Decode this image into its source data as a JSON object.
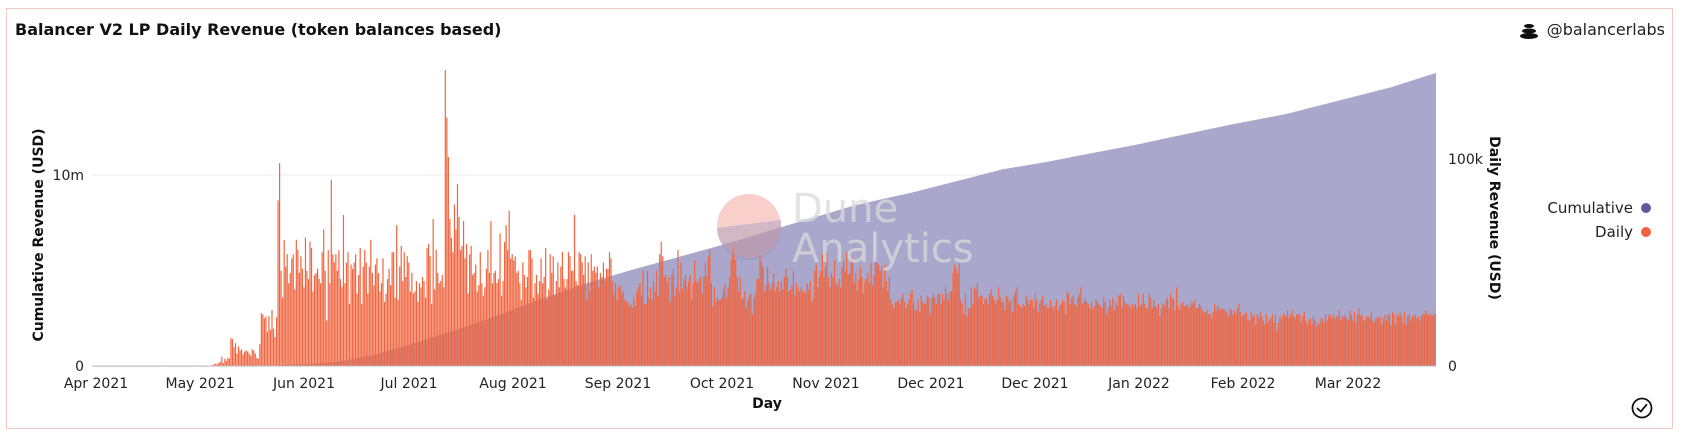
{
  "header": {
    "title": "Balancer V2 LP Daily Revenue (token balances based)",
    "author": "@balancerlabs"
  },
  "watermark": {
    "line1": "Dune",
    "line2": "Analytics"
  },
  "legend": {
    "placement": "right",
    "items": [
      {
        "label": "Cumulative",
        "color": "#5b5b9e"
      },
      {
        "label": "Daily",
        "color": "#f0653f"
      }
    ]
  },
  "colors": {
    "daily_bar": "#f0653f",
    "cumulative_area": "#a9a8cc"
  },
  "chart_data": {
    "type": "bar",
    "xlabel": "Day",
    "ylabel_left": "Cumulative Revenue (USD)",
    "ylabel_right": "Daily Revenue (USD)",
    "x_ticks": [
      "Apr 2021",
      "May 2021",
      "Jun 2021",
      "Jul 2021",
      "Aug 2021",
      "Sep 2021",
      "Oct 2021",
      "Nov 2021",
      "Dec 2021",
      "Dec 2021",
      "Jan 2022",
      "Feb 2022",
      "Mar 2022"
    ],
    "y_ticks_left": [
      {
        "value": 0,
        "label": "0"
      },
      {
        "value": 10000000,
        "label": "10m"
      }
    ],
    "y_ticks_right": [
      {
        "value": 0,
        "label": "0"
      },
      {
        "value": 100000,
        "label": "100k"
      }
    ],
    "ylim_left": [
      0,
      15500000
    ],
    "ylim_right": [
      0,
      143000
    ],
    "grid": true,
    "series": [
      {
        "name": "Daily",
        "type": "bar",
        "axis": "right",
        "values": [
          0,
          0,
          0,
          0,
          0,
          0,
          0,
          0,
          0,
          0,
          0,
          0,
          0,
          0,
          0,
          0,
          0,
          0,
          0,
          0,
          0,
          0,
          0,
          0,
          0,
          0,
          0,
          0,
          0,
          0,
          0,
          0,
          0,
          0,
          0,
          0,
          0,
          0,
          0,
          0,
          0,
          0,
          0,
          0,
          0,
          0,
          0,
          0,
          0,
          0,
          0,
          0,
          0,
          0,
          0,
          0,
          0,
          0,
          0,
          0,
          0,
          0,
          0,
          0,
          0,
          0,
          0,
          0,
          0,
          0,
          0,
          0,
          0,
          0,
          0,
          0,
          0,
          0,
          0,
          500,
          800,
          1200,
          800,
          1500,
          2000,
          4500,
          1500,
          3500,
          2500,
          4000,
          3500,
          13500,
          13000,
          9000,
          11000,
          6000,
          9500,
          7500,
          8000,
          5500,
          7000,
          7500,
          7000,
          6000,
          5000,
          8000,
          7500,
          6000,
          4000,
          3500,
          10500,
          25500,
          25000,
          23000,
          24000,
          16500,
          24000,
          17500,
          27000,
          18000,
          14000,
          23500,
          80000,
          98000,
          46000,
          33000,
          61000,
          48000,
          54000,
          40000,
          45000,
          52000,
          54000,
          37000,
          61000,
          56000,
          45000,
          53000,
          47000,
          38000,
          62000,
          46000,
          42000,
          60000,
          57000,
          36000,
          44000,
          45000,
          47000,
          42000,
          40000,
          55000,
          66000,
          46000,
          22000,
          56000,
          40000,
          90000,
          54000,
          50000,
          54000,
          46000,
          56000,
          42000,
          38000,
          73000,
          40000,
          50000,
          55000,
          30000,
          49000,
          47000,
          50000,
          54000,
          35000,
          44000,
          57000,
          30000,
          48000,
          56000,
          50000,
          35000,
          48000,
          61000,
          45000,
          39000,
          49000,
          52000,
          45000,
          36000,
          40000,
          52000,
          31000,
          35000,
          42000,
          47000,
          39000,
          55000,
          55000,
          33000,
          68000,
          32000,
          48000,
          58000,
          41000,
          55000,
          43000,
          53000,
          50000,
          36000,
          45000,
          35000,
          36000,
          41000,
          31000,
          40000,
          38000,
          43000,
          41000,
          33000,
          57000,
          59000,
          53000,
          30000,
          71000,
          37000,
          56000,
          45000,
          40000,
          41000,
          44000,
          38000,
          143000,
          120000,
          101000,
          71000,
          62000,
          55000,
          78000,
          66000,
          88000,
          72000,
          56000,
          58000,
          70000,
          52000,
          59000,
          35000,
          54000,
          58000,
          44000,
          45000,
          49000,
          36000,
          39000,
          55000,
          40000,
          34000,
          38000,
          47000,
          56000,
          45000,
          70000,
          40000,
          45000,
          46000,
          40000,
          42000,
          64000,
          34000,
          41000,
          60000,
          68000,
          56000,
          75000,
          52000,
          54000,
          51000,
          53000,
          45000,
          46000,
          40000,
          32000,
          50000,
          44000,
          38000,
          43000,
          56000,
          56000,
          52000,
          33000,
          40000,
          44000,
          35000,
          41000,
          52000,
          40000,
          43000,
          57000,
          32000,
          37000,
          54000,
          45000,
          53000,
          34000,
          41000,
          50000,
          38000,
          48000,
          55000,
          42000,
          38000,
          42000,
          55000,
          53000,
          46000,
          46000,
          73000,
          41000,
          39000,
          55000,
          54000,
          50000,
          44000,
          53000,
          32000,
          50000,
          36000,
          54000,
          46000,
          48000,
          45000,
          48000,
          38000,
          45000,
          43000,
          50000,
          41000,
          47000,
          47000,
          55000,
          52000,
          41000,
          35000,
          40000,
          32000,
          38000,
          39000,
          35000,
          36000,
          32000,
          31000,
          31000,
          29000,
          30000,
          28000,
          33000,
          29000,
          36000,
          38000,
          40000,
          34000,
          46000,
          30000,
          30000,
          46000,
          33000,
          38000,
          32000,
          41000,
          36000,
          46000,
          34000,
          54000,
          60000,
          53000,
          43000,
          44000,
          40000,
          43000,
          31000,
          44000,
          47000,
          34000,
          38000,
          56000,
          36000,
          50000,
          37000,
          42000,
          44000,
          38000,
          41000,
          44000,
          32000,
          40000,
          51000,
          41000,
          40000,
          42000,
          43000,
          35000,
          43000,
          50000,
          43000,
          53000,
          56000,
          40000,
          29000,
          38000,
          31000,
          33000,
          32000,
          32000,
          33000,
          37000,
          40000,
          33000,
          38000,
          43000,
          51000,
          57000,
          59000,
          51000,
          43000,
          36000,
          43000,
          32000,
          33000,
          36000,
          28000,
          32000,
          34000,
          35000,
          25000,
          33000,
          35000,
          42000,
          42000,
          54000,
          50000,
          48000,
          36000,
          39000,
          48000,
          40000,
          37000,
          40000,
          45000,
          36000,
          38000,
          41000,
          36000,
          41000,
          37000,
          43000,
          47000,
          43000,
          36000,
          37000,
          39000,
          46000,
          34000,
          40000,
          38000,
          36000,
          38000,
          36000,
          36000,
          35000,
          40000,
          37000,
          41000,
          31000,
          33000,
          46000,
          49000,
          38000,
          43000,
          46000,
          54000,
          43000,
          48000,
          55000,
          43000,
          38000,
          45000,
          43000,
          51000,
          40000,
          39000,
          42000,
          38000,
          48000,
          51000,
          46000,
          55000,
          44000,
          45000,
          50000,
          52000,
          40000,
          45000,
          36000,
          42000,
          48000,
          43000,
          35000,
          41000,
          42000,
          45000,
          40000,
          50000,
          39000,
          44000,
          53000,
          50000,
          49000,
          46000,
          48000,
          38000,
          49000,
          41000,
          36000,
          43000,
          32000,
          30000,
          28000,
          31000,
          31000,
          32000,
          30000,
          33000,
          35000,
          31000,
          28000,
          30000,
          32000,
          35000,
          37000,
          31000,
          27000,
          27000,
          32000,
          26000,
          34000,
          31000,
          30000,
          30000,
          34000,
          33000,
          25000,
          33000,
          35000,
          33000,
          30000,
          35000,
          35000,
          30000,
          35000,
          32000,
          38000,
          35000,
          32000,
          36000,
          36000,
          45000,
          49000,
          47000,
          45000,
          49000,
          32000,
          30000,
          25000,
          35000,
          24000,
          28000,
          28000,
          38000,
          30000,
          38000,
          37000,
          40000,
          33000,
          34000,
          34000,
          30000,
          32000,
          33000,
          30000,
          35000,
          37000,
          34000,
          32000,
          30000,
          32000,
          38000,
          33000,
          31000,
          31000,
          27000,
          34000,
          33000,
          31000,
          32000,
          26000,
          34000,
          36000,
          38000,
          30000,
          29000,
          28000,
          30000,
          29000,
          34000,
          32000,
          30000,
          32000,
          32000,
          28000,
          35000,
          32000,
          26000,
          30000,
          32000,
          34000,
          29000,
          30000,
          28000,
          28000,
          32000,
          29000,
          27000,
          29000,
          32000,
          27000,
          29000,
          30000,
          32000,
          31000,
          25000,
          36000,
          35000,
          30000,
          33000,
          34000,
          30000,
          29000,
          33000,
          35000,
          38000,
          30000,
          31000,
          33000,
          31000,
          30000,
          28000,
          31000,
          28000,
          29000,
          32000,
          31000,
          30000,
          29000,
          28000,
          33000,
          31000,
          25000,
          28000,
          32000,
          29000,
          33000,
          27000,
          31000,
          29000,
          34000,
          35000,
          28000,
          34000,
          31000,
          30000,
          30000,
          29000,
          28000,
          30000,
          29000,
          30000,
          28000,
          35000,
          29000,
          30000,
          35000,
          30000,
          28000,
          28000,
          35000,
          33000,
          28000,
          32000,
          29000,
          28000,
          30000,
          24000,
          28000,
          30000,
          29000,
          32000,
          33000,
          28000,
          35000,
          33000,
          32000,
          27000,
          38000,
          29000,
          27000,
          30000,
          31000,
          29000,
          29000,
          30000,
          28000,
          29000,
          31000,
          30000,
          32000,
          28000,
          28000,
          30000,
          29000,
          27000,
          26000,
          26000,
          27000,
          25000,
          25000,
          23000,
          26000,
          30000,
          27000,
          29000,
          28000,
          27000,
          28000,
          27000,
          27000,
          26000,
          24000,
          28000,
          27000,
          25000,
          27000,
          25000,
          28000,
          30000,
          26000,
          24000,
          25000,
          25000,
          26000,
          22000,
          22000,
          26000,
          24000,
          25000,
          20000,
          25000,
          23000,
          26000,
          24000,
          22000,
          20000,
          25000,
          21000,
          22000,
          23000,
          25000,
          21000,
          25000,
          17000,
          21000,
          24000,
          23000,
          25000,
          25000,
          24000,
          27000,
          23000,
          25000,
          27000,
          24000,
          23000,
          25000,
          25000,
          25000,
          21000,
          24000,
          26000,
          22000,
          20000,
          22000,
          23000,
          20000,
          24000,
          22000,
          19000,
          21000,
          20000,
          23000,
          23000,
          21000,
          25000,
          22000,
          24000,
          25000,
          23000,
          25000,
          23000,
          24000,
          24000,
          27000,
          22000,
          24000,
          24000,
          25000,
          23000,
          22000,
          27000,
          25000,
          22000,
          26000,
          21000,
          25000,
          28000,
          24000,
          25000,
          22000,
          22000,
          24000,
          24000,
          23000,
          26000,
          22000,
          21000,
          23000,
          24000,
          23000,
          24000,
          20000,
          23000,
          25000,
          22000,
          25000,
          25000,
          20000,
          26000,
          25000,
          20000,
          25000,
          24000,
          26000,
          24000,
          21000,
          26000,
          20000,
          24000,
          25000,
          22000,
          24000,
          24000,
          25000,
          23000,
          24000,
          22000,
          24000,
          25000,
          25000,
          27000,
          25000,
          25000,
          25000,
          24000,
          25000,
          25000
        ]
      },
      {
        "name": "Cumulative",
        "type": "area",
        "axis": "left",
        "values": [
          0,
          0,
          0,
          0,
          10000,
          80000,
          220000,
          600000,
          1300000,
          2050000,
          2750000,
          3500000,
          4300000,
          5000000,
          5650000,
          6300000,
          7000000,
          7700000,
          8400000,
          9100000,
          9700000,
          10300000,
          10700000,
          11000000,
          11600000,
          12100000,
          12600000,
          13200000,
          14000000,
          14600000,
          15100000,
          15350000
        ]
      }
    ],
    "cumulative_x_index": [
      0,
      8,
      14,
      18,
      22,
      28,
      33,
      38,
      44,
      50,
      55,
      60,
      66,
      72,
      78,
      84,
      90,
      96,
      102,
      110,
      116,
      122,
      128,
      132,
      140,
      146,
      152,
      160,
      168,
      174,
      178,
      180
    ]
  }
}
